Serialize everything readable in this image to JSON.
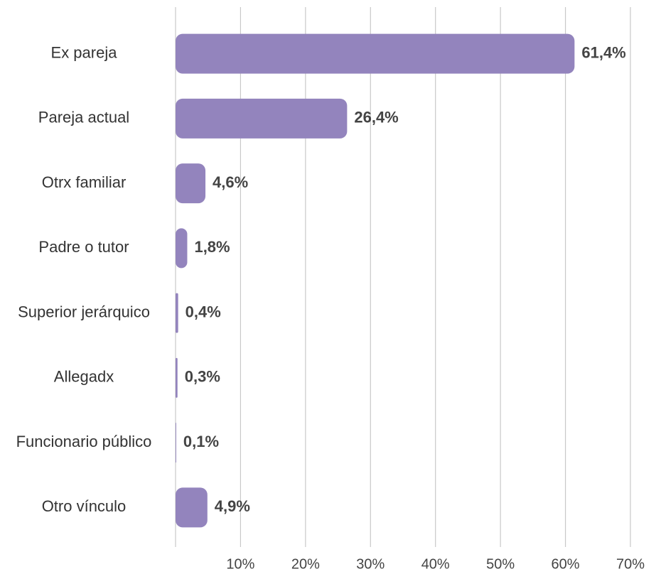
{
  "chart_data": {
    "type": "bar",
    "orientation": "horizontal",
    "categories": [
      "Ex pareja",
      "Pareja actual",
      "Otrx familiar",
      "Padre o tutor",
      "Superior jerárquico",
      "Allegadx",
      "Funcionario público",
      "Otro vínculo"
    ],
    "values": [
      61.4,
      26.4,
      4.6,
      1.8,
      0.4,
      0.3,
      0.1,
      4.9
    ],
    "value_labels": [
      "61,4%",
      "26,4%",
      "4,6%",
      "1,8%",
      "0,4%",
      "0,3%",
      "0,1%",
      "4,9%"
    ],
    "color": "#9384bd",
    "xlim": [
      0,
      70
    ],
    "xticks": [
      {
        "value": 10,
        "label": "10%"
      },
      {
        "value": 20,
        "label": "20%"
      },
      {
        "value": 30,
        "label": "30%"
      },
      {
        "value": 40,
        "label": "40%"
      },
      {
        "value": 50,
        "label": "50%"
      },
      {
        "value": 60,
        "label": "60%"
      },
      {
        "value": 70,
        "label": "70%"
      }
    ],
    "grid": true
  }
}
